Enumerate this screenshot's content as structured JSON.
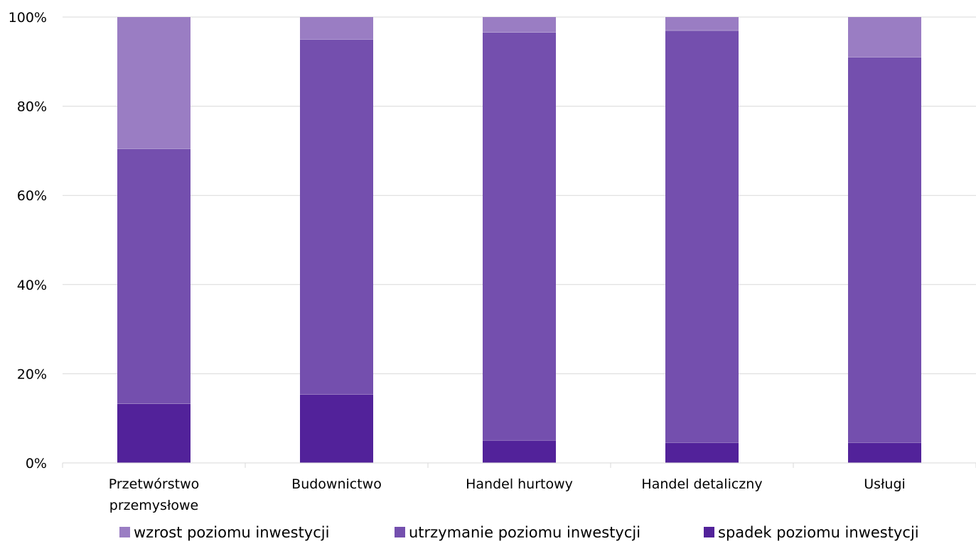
{
  "chart_data": {
    "type": "bar",
    "stacked": true,
    "percent": true,
    "categories": [
      [
        "Przetwórstwo",
        "przemysłowe"
      ],
      [
        "Budownictwo"
      ],
      [
        "Handel hurtowy"
      ],
      [
        "Handel detaliczny"
      ],
      [
        "Usługi"
      ]
    ],
    "series": [
      {
        "name": "spadek poziomu inwestycji",
        "color": "#52229a",
        "values": [
          13.3,
          15.4,
          5.1,
          4.6,
          4.6
        ]
      },
      {
        "name": "utrzymanie poziomu inwestycji",
        "color": "#744fae",
        "values": [
          57.2,
          79.6,
          91.5,
          92.4,
          86.4
        ]
      },
      {
        "name": "wzrost poziomu inwestycji",
        "color": "#9a7dc3",
        "values": [
          29.5,
          5.0,
          3.4,
          3.0,
          9.0
        ]
      }
    ],
    "legend_order": [
      2,
      1,
      0
    ],
    "ylim": [
      0,
      100
    ],
    "yticks": [
      0,
      20,
      40,
      60,
      80,
      100
    ],
    "ytick_labels": [
      "0%",
      "20%",
      "40%",
      "60%",
      "80%",
      "100%"
    ],
    "grid": true,
    "legend_position": "bottom"
  }
}
